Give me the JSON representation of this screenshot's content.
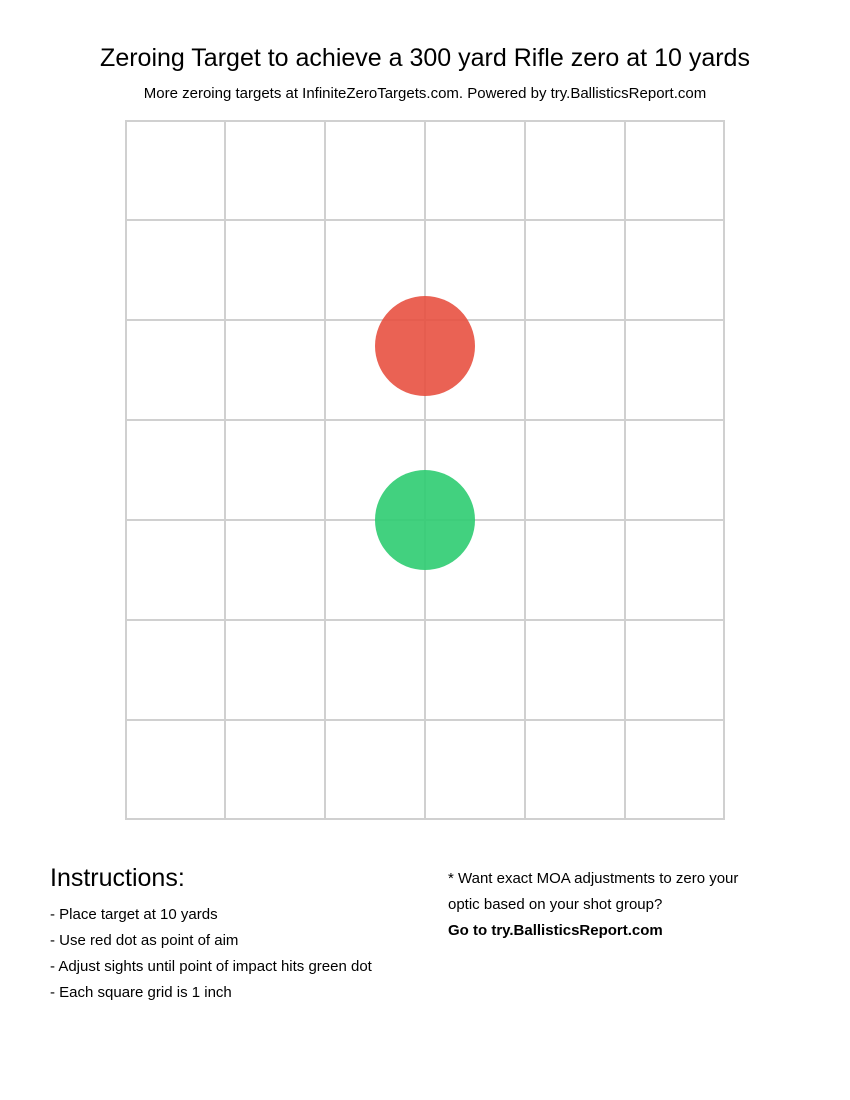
{
  "title": "Zeroing Target to achieve a 300 yard Rifle zero at 10 yards",
  "subtitle": "More zeroing targets at InfiniteZeroTargets.com. Powered by try.BallisticsReport.com",
  "target": {
    "columns": 6,
    "rows": 7,
    "grid_color": "#d0d0d0",
    "aim_dot": {
      "color": "#e74c3c",
      "col_offset_inches": 3,
      "row_offset_inches": 2.26
    },
    "impact_dot": {
      "color": "#2ecc71",
      "col_offset_inches": 3,
      "row_offset_inches": 4
    }
  },
  "instructions": {
    "heading": "Instructions:",
    "items": [
      "- Place target at 10 yards",
      "- Use red dot as point of aim",
      "- Adjust sights until point of impact hits green dot",
      "- Each square grid is 1 inch"
    ]
  },
  "cta": {
    "line1": "* Want exact MOA adjustments to zero your",
    "line2": "optic based on your shot group?",
    "link": "Go to try.BallisticsReport.com"
  }
}
